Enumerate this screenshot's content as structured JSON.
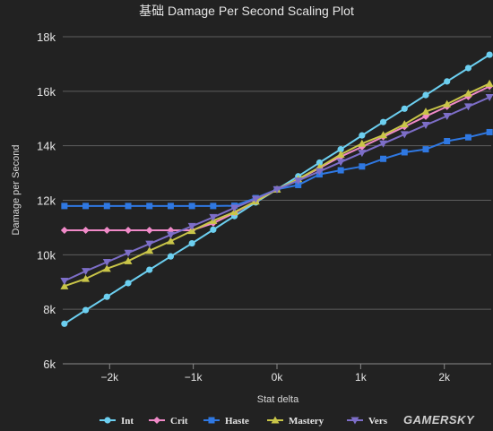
{
  "chart_data": {
    "type": "line",
    "title": "基础 Damage Per Second Scaling Plot",
    "xlabel": "Stat delta",
    "ylabel": "Damage per Second",
    "xlim": [
      -2560,
      2560
    ],
    "ylim": [
      6000,
      18000
    ],
    "x_ticks": [
      -2000,
      -1000,
      0,
      1000,
      2000
    ],
    "x_tick_labels": [
      "−2k",
      "−1k",
      "0k",
      "1k",
      "2k"
    ],
    "y_ticks": [
      6000,
      8000,
      10000,
      12000,
      14000,
      16000,
      18000
    ],
    "y_tick_labels": [
      "6k",
      "8k",
      "10k",
      "12k",
      "14k",
      "16k",
      "18k"
    ],
    "grid": "horizontal",
    "legend_position": "bottom",
    "x": [
      -2540,
      -2286,
      -2032,
      -1778,
      -1524,
      -1270,
      -1016,
      -762,
      -508,
      -254,
      0,
      254,
      508,
      762,
      1016,
      1270,
      1524,
      1778,
      2032,
      2286,
      2540
    ],
    "series": [
      {
        "name": "Int",
        "color": "#6ccff0",
        "marker": "circle",
        "values": [
          7470,
          7970,
          8460,
          8960,
          9450,
          9940,
          10420,
          10920,
          11420,
          11920,
          12400,
          12880,
          13380,
          13870,
          14380,
          14870,
          15360,
          15860,
          16360,
          16850,
          17340
        ]
      },
      {
        "name": "Crit",
        "color": "#f08ac8",
        "marker": "diamond",
        "values": [
          10900,
          10900,
          10900,
          10900,
          10900,
          10900,
          10900,
          11160,
          11540,
          11960,
          12400,
          12760,
          13180,
          13600,
          13960,
          14330,
          14700,
          15080,
          15440,
          15800,
          16180
        ]
      },
      {
        "name": "Haste",
        "color": "#2f78e2",
        "marker": "square",
        "values": [
          11790,
          11790,
          11790,
          11790,
          11790,
          11790,
          11790,
          11790,
          11800,
          12080,
          12400,
          12560,
          12950,
          13100,
          13240,
          13520,
          13760,
          13870,
          14170,
          14310,
          14500
        ]
      },
      {
        "name": "Mastery",
        "color": "#c9c548",
        "marker": "triangle",
        "values": [
          8850,
          9120,
          9490,
          9770,
          10150,
          10500,
          10880,
          11250,
          11570,
          11960,
          12400,
          12780,
          13210,
          13680,
          14080,
          14390,
          14790,
          15250,
          15530,
          15920,
          16280
        ]
      },
      {
        "name": "Vers",
        "color": "#7d6ec8",
        "marker": "triangle-down",
        "values": [
          9040,
          9400,
          9730,
          10070,
          10400,
          10730,
          11050,
          11380,
          11720,
          12050,
          12400,
          12720,
          13060,
          13400,
          13740,
          14080,
          14420,
          14760,
          15090,
          15440,
          15780
        ]
      }
    ]
  },
  "watermark": "GAMERSKY"
}
